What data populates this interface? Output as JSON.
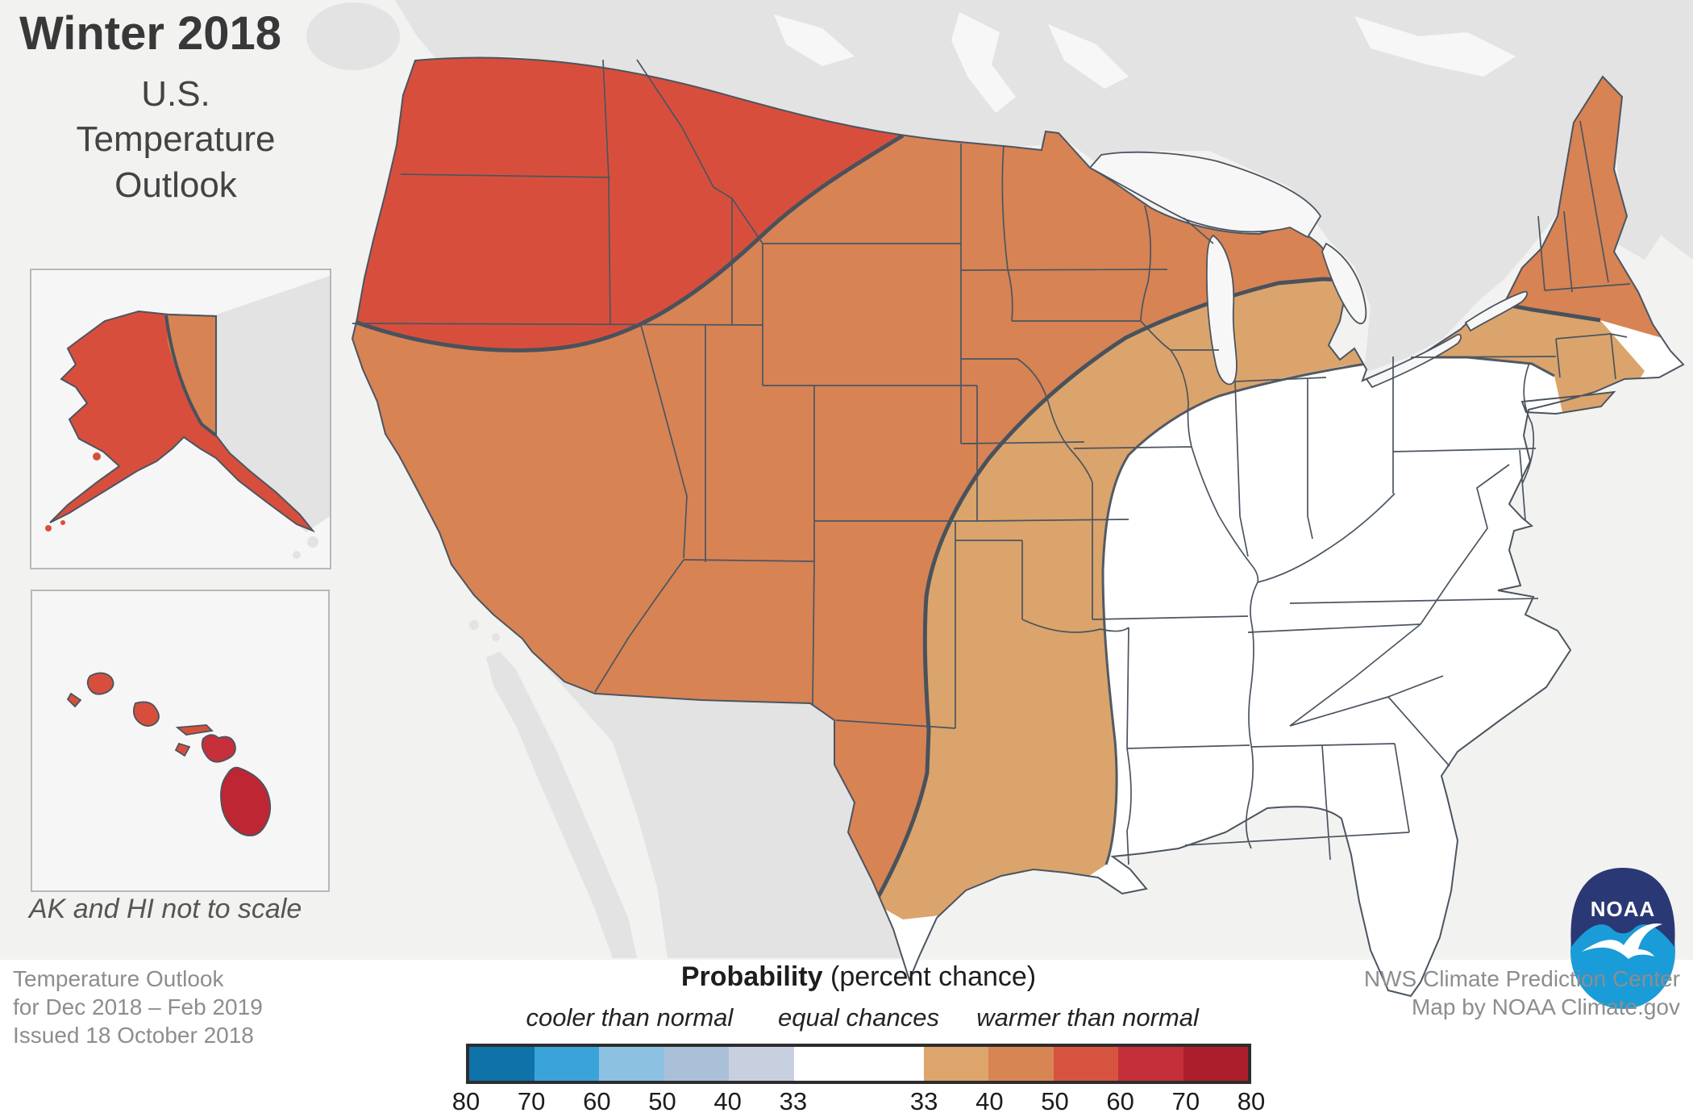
{
  "title": {
    "main": "Winter 2018",
    "sub_line1": "U.S.",
    "sub_line2": "Temperature",
    "sub_line3": "Outlook"
  },
  "inset_note": "AK and HI not to scale",
  "footer_left": {
    "line1": "Temperature Outlook",
    "line2": "for Dec 2018 – Feb 2019",
    "line3": "Issued 18 October 2018"
  },
  "footer_right": {
    "line1": "NWS Climate Prediction Center",
    "line2": "Map by NOAA Climate.gov"
  },
  "legend": {
    "title_bold": "Probability",
    "title_rest": " (percent chance)",
    "group_labels": [
      "cooler than normal",
      "equal chances",
      "warmer than normal"
    ],
    "cool_ticks": [
      "80",
      "70",
      "60",
      "50",
      "40",
      "33"
    ],
    "warm_ticks": [
      "33",
      "40",
      "50",
      "60",
      "70",
      "80"
    ],
    "cool_colors": [
      "#0f72a9",
      "#3aa3da",
      "#8cc1e2",
      "#a9c0d8",
      "#c8d0e0"
    ],
    "neutral_color": "#ffffff",
    "warm_colors": [
      "#dda56c",
      "#d88554",
      "#d6543f",
      "#c42f39",
      "#ac1e2b"
    ]
  },
  "map": {
    "colors": {
      "ocean": "#f2f2f1",
      "foreign_land": "#e3e3e3",
      "lake": "#f7f7f7",
      "equal_chances": "#ffffff",
      "warm_33_40": "#dba46c",
      "warm_40_50": "#d78354",
      "warm_50_60": "#d74f3c",
      "warm_60_70": "#c5303a",
      "warm_70_80": "#bf2634",
      "state_border": "#4b5560",
      "contour": "#49525c"
    },
    "legend_note_regions": [
      "equal chances (white, Southeast/Ohio Valley/Mid-Atlantic)",
      "33-40% warmer (tan band)",
      "40-50% warmer (orange West/North)",
      "50-60% warmer (red Northwest, Alaska)"
    ]
  },
  "logo": {
    "text": "NOAA"
  }
}
